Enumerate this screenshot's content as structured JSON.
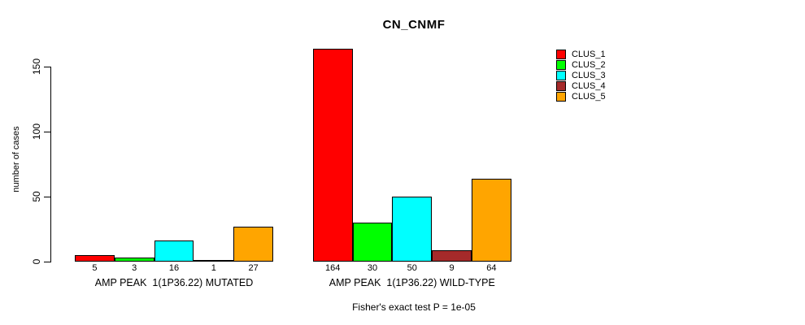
{
  "title": "CN_CNMF",
  "ylabel": "number of cases",
  "footer": "Fisher's exact test P = 1e-05",
  "legend": {
    "position": "top-right",
    "items": [
      {
        "label": "CLUS_1",
        "color": "#FF0000"
      },
      {
        "label": "CLUS_2",
        "color": "#00FF00"
      },
      {
        "label": "CLUS_3",
        "color": "#00FFFF"
      },
      {
        "label": "CLUS_4",
        "color": "#A52A2A"
      },
      {
        "label": "CLUS_5",
        "color": "#FFA500"
      }
    ]
  },
  "chart_data": {
    "type": "bar",
    "title": "CN_CNMF",
    "xlabel": "",
    "ylabel": "number of cases",
    "ylim": [
      0,
      150
    ],
    "yticks": [
      0,
      50,
      100,
      150
    ],
    "grid": false,
    "legend_position": "top-right",
    "series_names": [
      "CLUS_1",
      "CLUS_2",
      "CLUS_3",
      "CLUS_4",
      "CLUS_5"
    ],
    "series_colors": [
      "#FF0000",
      "#00FF00",
      "#00FFFF",
      "#A52A2A",
      "#FFA500"
    ],
    "groups": [
      {
        "label": "AMP PEAK  1(1P36.22) MUTATED",
        "values": [
          5,
          3,
          16,
          1,
          27
        ]
      },
      {
        "label": "AMP PEAK  1(1P36.22) WILD-TYPE",
        "values": [
          164,
          30,
          50,
          9,
          64
        ]
      }
    ],
    "bar_value_labels_shown": true,
    "annotation": "Fisher's exact test P = 1e-05"
  }
}
